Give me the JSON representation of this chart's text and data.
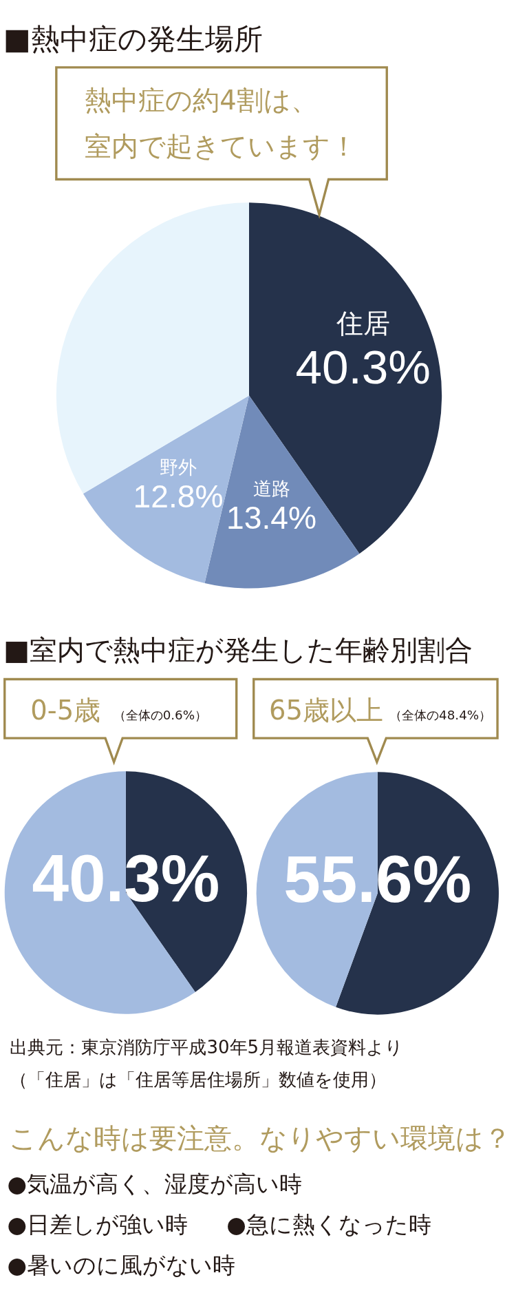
{
  "chart_data": [
    {
      "type": "pie",
      "title": "■熱中症の発生場所",
      "annotations": [
        "熱中症の約4割は、",
        "室内で起きています！"
      ],
      "categories": [
        "住居",
        "道路",
        "野外",
        null
      ],
      "values": [
        40.3,
        13.4,
        12.8,
        33.5
      ],
      "colors": [
        "#25324b",
        "#718bb9",
        "#a3bbe0",
        "#e7f4fc"
      ],
      "value_labels": [
        "40.3%",
        "13.4%",
        "12.8%",
        null
      ]
    },
    {
      "type": "pie",
      "title": "0-5歳",
      "subtitle": "（全体の0.6%）",
      "annotations": [
        "■室内で熱中症が発生した年齢別割合"
      ],
      "categories": [
        null,
        null
      ],
      "values": [
        40.3,
        59.7
      ],
      "colors": [
        "#25324b",
        "#a3bbe0"
      ],
      "value_labels": [
        "40.3%",
        null
      ]
    },
    {
      "type": "pie",
      "title": "65歳以上",
      "subtitle": "（全体の48.4%）",
      "categories": [
        null,
        null
      ],
      "values": [
        55.6,
        44.4
      ],
      "colors": [
        "#25324b",
        "#a3bbe0"
      ],
      "value_labels": [
        "55.6%",
        null
      ]
    },
    {
      "type": "other",
      "annotations": [
        "出典元：東京消防庁平成30年5月報道表資料より",
        "（「住居」は「住居等居住場所」数値を使用）"
      ]
    },
    {
      "type": "other",
      "title": "こんな時は要注意。なりやすい環境は？",
      "annotations": [
        "●気温が高く、湿度が高い時",
        "●日差しが強い時",
        "●急に熱くなった時",
        "●暑いのに風がない時"
      ]
    }
  ]
}
